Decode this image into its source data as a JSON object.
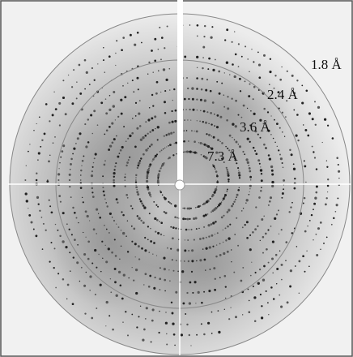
{
  "resolution_rings": [
    "1.8 Å",
    "2.4 Å",
    "3.6 Å",
    "7.3 Å"
  ]
}
